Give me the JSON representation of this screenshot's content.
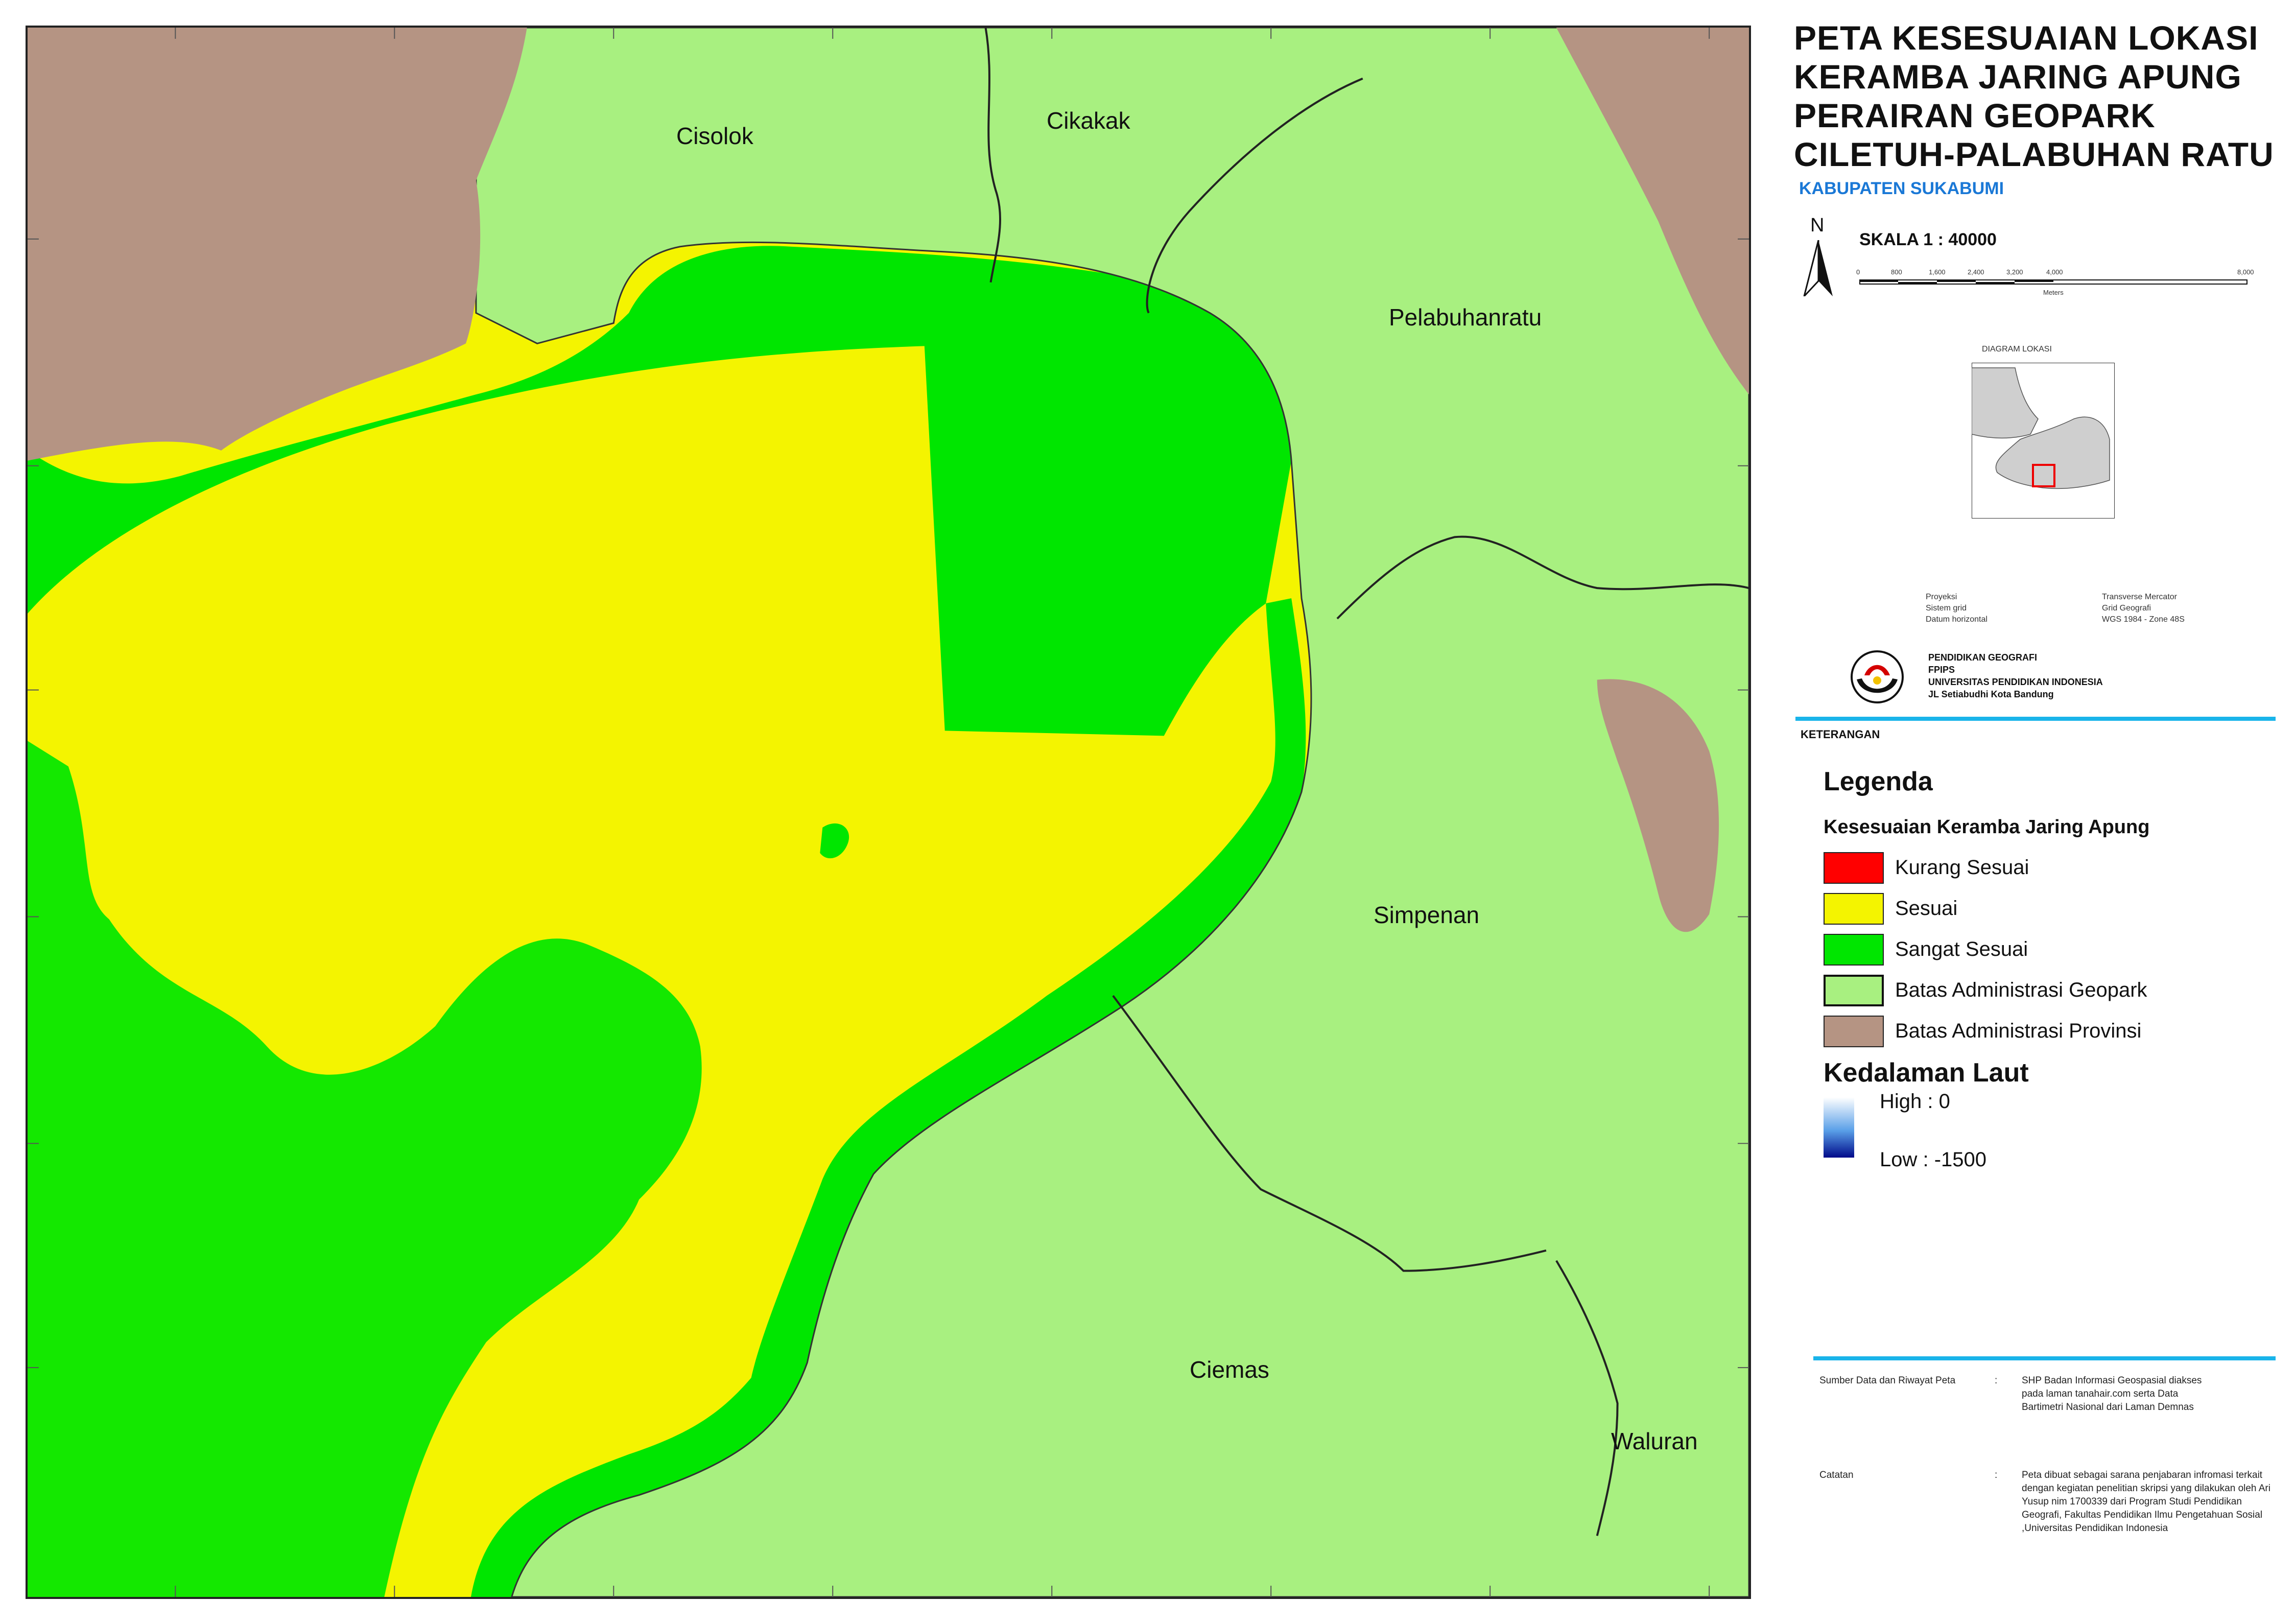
{
  "map": {
    "places": [
      {
        "name": "Cisolok"
      },
      {
        "name": "Cikakak"
      },
      {
        "name": "Pelabuhanratu"
      },
      {
        "name": "Simpenan"
      },
      {
        "name": "Ciemas"
      },
      {
        "name": "Waluran"
      }
    ]
  },
  "title": {
    "lines": [
      "PETA KESESUAIAN LOKASI",
      "KERAMBA JARING APUNG",
      "PERAIRAN GEOPARK",
      "CILETUH-PALABUHAN RATU"
    ],
    "subtitle": "KABUPATEN SUKABUMI"
  },
  "north_arrow": {
    "label": "N"
  },
  "scale": {
    "label": "SKALA 1 : 40000",
    "ticks": [
      "0",
      "800",
      "1,600",
      "2,400",
      "3,200",
      "4,000",
      "8,000"
    ],
    "unit": "Meters"
  },
  "location_diagram": {
    "title": "DIAGRAM LOKASI"
  },
  "projection": {
    "rows": [
      {
        "key": "Proyeksi",
        "value": "Transverse Mercator"
      },
      {
        "key": "Sistem grid",
        "value": "Grid Geografi"
      },
      {
        "key": "Datum horizontal",
        "value": "WGS 1984 - Zone 48S"
      }
    ]
  },
  "institution": {
    "lines": [
      "PENDIDIKAN GEOGRAFI",
      "FPIPS",
      "UNIVERSITAS PENDIDIKAN INDONESIA",
      "JL Setiabudhi Kota Bandung"
    ]
  },
  "keterangan": "KETERANGAN",
  "legend": {
    "title": "Legenda",
    "group_title": "Kesesuaian Keramba Jaring Apung",
    "items": [
      {
        "label": "Kurang Sesuai",
        "color": "#ff0000"
      },
      {
        "label": "Sesuai",
        "color": "#f4f400"
      },
      {
        "label": "Sangat Sesuai",
        "color": "#00e600"
      },
      {
        "label": "Batas Administrasi Geopark",
        "color": "#a8f080"
      },
      {
        "label": "Batas Administrasi Provinsi",
        "color": "#b59483"
      }
    ],
    "depth_title": "Kedalaman Laut",
    "depth_high": "High : 0",
    "depth_low": "Low : -1500"
  },
  "source": {
    "label": "Sumber Data dan Riwayat Peta",
    "separator": ":",
    "text": "SHP Badan Informasi Geospasial diakses pada laman tanahair.com serta Data Bartimetri Nasional dari Laman Demnas"
  },
  "notes": {
    "label": "Catatan",
    "separator": ":",
    "text": "Peta dibuat sebagai sarana penjabaran infromasi terkait dengan kegiatan penelitian skripsi yang dilakukan oleh Ari Yusup nim 1700339 dari Program Studi Pendidikan Geografi, Fakultas Pendidikan Ilmu Pengetahuan Sosial ,Universitas Pendidikan Indonesia"
  },
  "colors": {
    "sesuai": "#f4f400",
    "sangat_sesuai": "#00e600",
    "land": "#a8f080",
    "province": "#b59483",
    "accent": "#19b4ea",
    "subtitle": "#1a78d6"
  }
}
